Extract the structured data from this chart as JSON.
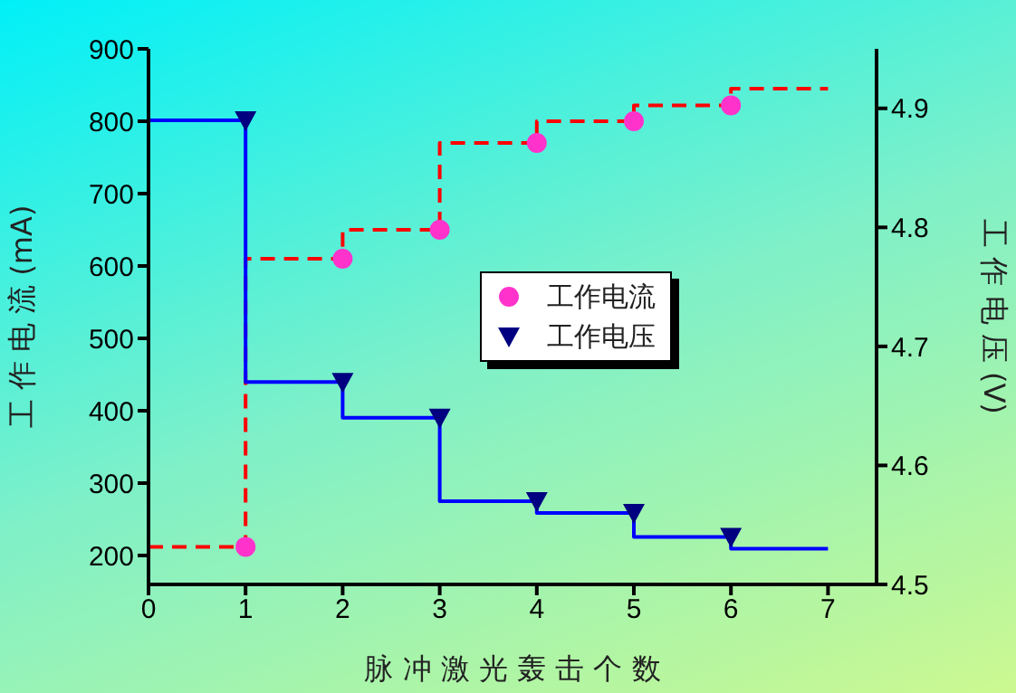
{
  "chart_data": {
    "type": "step",
    "xlabel": "脉 冲 激 光 轰 击 个 数",
    "ylabel": "工 作 电 流 (mA)",
    "y2label": "工 作 电 压 (V)",
    "xlim": [
      0,
      7.5
    ],
    "xticks": [
      0,
      1,
      2,
      3,
      4,
      5,
      6,
      7
    ],
    "ylim": [
      160,
      900
    ],
    "yticks": [
      200,
      300,
      400,
      500,
      600,
      700,
      800,
      900
    ],
    "y2lim": [
      4.5,
      4.95
    ],
    "y2ticks": [
      4.5,
      4.6,
      4.7,
      4.8,
      4.9
    ],
    "grid": false,
    "legend": "right",
    "series": [
      {
        "name": "工作电流",
        "type": "scatter",
        "color": "#ff33cc",
        "marker": "circle",
        "x": [
          1,
          2,
          3,
          4,
          5,
          6
        ],
        "values": [
          212,
          610,
          650,
          770,
          800,
          822
        ]
      },
      {
        "color": "#ff0000",
        "marker": "none",
        "line_style": "dashed",
        "x": [
          0,
          1,
          2,
          3,
          4,
          5,
          6,
          7
        ],
        "values": [
          212,
          212,
          610,
          650,
          770,
          800,
          822,
          845
        ]
      },
      {
        "name": "工作电压",
        "type": "scatter",
        "axis": "y2",
        "color": "#000080",
        "marker": "triangle",
        "x": [
          1,
          2,
          3,
          4,
          5,
          6
        ],
        "values": [
          4.89,
          4.67,
          4.64,
          4.57,
          4.56,
          4.54
        ]
      },
      {
        "axis": "y2",
        "color": "#0000ff",
        "marker": "none",
        "line_style": "solid",
        "x": [
          0,
          1,
          2,
          3,
          4,
          5,
          6,
          7
        ],
        "values": [
          4.89,
          4.89,
          4.67,
          4.64,
          4.57,
          4.56,
          4.54,
          4.53
        ]
      }
    ]
  }
}
